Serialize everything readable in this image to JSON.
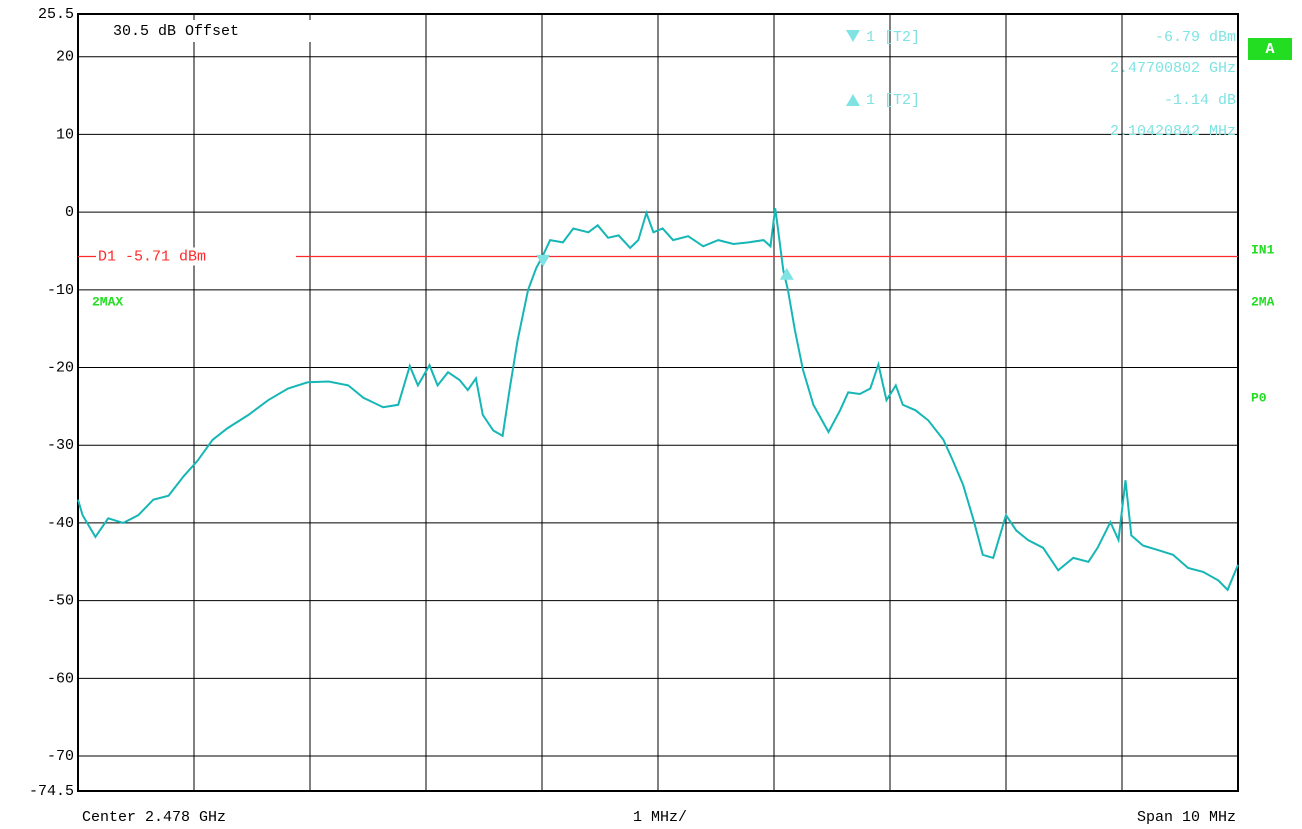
{
  "chart_data": {
    "type": "line",
    "offset_label": "30.5 dB Offset",
    "trace_label": "2MAX",
    "side_labels": [
      "IN1",
      "2MA",
      "P0"
    ],
    "screen_label": "A",
    "center_label": "Center 2.478 GHz",
    "div_label": "1 MHz/",
    "span_label": "Span 10 MHz",
    "display_line": {
      "label": "D1 -5.71 dBm",
      "value": -5.71,
      "color": "#ff2a2a"
    },
    "markers": [
      {
        "name": "1 [T2]",
        "level": "-6.79 dBm",
        "freq": "2.47700802 GHz",
        "x": -0.99,
        "y": -6.79
      },
      {
        "name": "1 [T2]",
        "level": "-1.14 dB",
        "freq": "2.10420842 MHz",
        "x": 1.11,
        "y": -7.93
      }
    ],
    "xlim": [
      -5,
      5
    ],
    "xticks": [
      -4,
      -3,
      -2,
      -1,
      0,
      1,
      2,
      3,
      4
    ],
    "ylim": [
      -74.5,
      25.5
    ],
    "yticks": [
      25.5,
      20,
      10,
      0,
      -10,
      -20,
      -30,
      -40,
      -50,
      -60,
      -70,
      -74.5
    ],
    "grid": true,
    "series": [
      {
        "name": "2MAX",
        "color": "#17b6b6",
        "x": [
          -5,
          -4.96,
          -4.85,
          -4.74,
          -4.61,
          -4.48,
          -4.35,
          -4.22,
          -4.09,
          -3.97,
          -3.84,
          -3.71,
          -3.53,
          -3.36,
          -3.19,
          -3.02,
          -2.84,
          -2.67,
          -2.54,
          -2.37,
          -2.24,
          -2.14,
          -2.07,
          -1.97,
          -1.9,
          -1.81,
          -1.71,
          -1.64,
          -1.57,
          -1.51,
          -1.42,
          -1.34,
          -1.28,
          -1.21,
          -1.12,
          -1.05,
          -0.99,
          -0.93,
          -0.82,
          -0.73,
          -0.6,
          -0.52,
          -0.43,
          -0.34,
          -0.24,
          -0.17,
          -0.1,
          -0.04,
          0.04,
          0.13,
          0.26,
          0.39,
          0.52,
          0.65,
          0.78,
          0.91,
          0.97,
          1.01,
          1.03,
          1.08,
          1.12,
          1.18,
          1.25,
          1.34,
          1.47,
          1.57,
          1.64,
          1.74,
          1.83,
          1.9,
          1.97,
          2.05,
          2.11,
          2.22,
          2.33,
          2.46,
          2.54,
          2.63,
          2.72,
          2.8,
          2.89,
          3.0,
          3.09,
          3.19,
          3.32,
          3.45,
          3.58,
          3.71,
          3.79,
          3.9,
          3.97,
          4.03,
          4.08,
          4.18,
          4.31,
          4.44,
          4.57,
          4.7,
          4.83,
          4.91,
          5
        ],
        "values": [
          -37,
          -39,
          -41.8,
          -39.4,
          -40,
          -39,
          -37,
          -36.5,
          -34,
          -32,
          -29.3,
          -27.8,
          -26.1,
          -24.2,
          -22.7,
          -21.9,
          -21.8,
          -22.3,
          -23.9,
          -25.1,
          -24.8,
          -19.8,
          -22.3,
          -19.7,
          -22.3,
          -20.6,
          -21.6,
          -22.9,
          -21.4,
          -26.1,
          -28.1,
          -28.8,
          -22.9,
          -16.5,
          -10,
          -7.2,
          -5.5,
          -3.6,
          -3.9,
          -2.1,
          -2.6,
          -1.7,
          -3.3,
          -3,
          -4.6,
          -3.6,
          -0.1,
          -2.6,
          -2.1,
          -3.6,
          -3.1,
          -4.4,
          -3.6,
          -4.1,
          -3.9,
          -3.6,
          -4.4,
          0.5,
          -1.7,
          -7.5,
          -10,
          -15.2,
          -20.3,
          -24.8,
          -28.3,
          -25.5,
          -23.2,
          -23.4,
          -22.7,
          -19.6,
          -24.2,
          -22.3,
          -24.8,
          -25.5,
          -26.8,
          -29.3,
          -31.9,
          -35.1,
          -39.6,
          -44.1,
          -44.5,
          -39,
          -41,
          -42.2,
          -43.2,
          -46.1,
          -44.5,
          -45,
          -43.2,
          -39.9,
          -42.2,
          -34.5,
          -41.6,
          -42.9,
          -43.5,
          -44.1,
          -45.8,
          -46.3,
          -47.4,
          -48.6,
          -45.4
        ]
      }
    ]
  }
}
